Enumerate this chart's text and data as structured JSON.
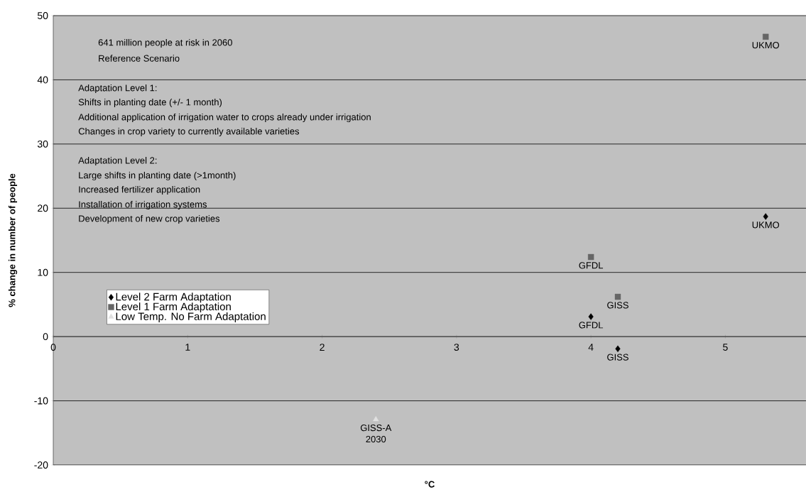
{
  "chart_data": {
    "type": "scatter",
    "xlabel": "°C",
    "ylabel": "% change in number of people",
    "xlim": [
      0,
      5.6
    ],
    "ylim": [
      -20,
      50
    ],
    "xticks": [
      0,
      1,
      2,
      3,
      4,
      5
    ],
    "yticks": [
      -20,
      -10,
      0,
      10,
      20,
      30,
      40,
      50
    ],
    "grid": "y",
    "legend": "left",
    "series": [
      {
        "name": "Level 2 Farm Adaptation",
        "color": "#000000",
        "marker": "diamond",
        "x": [
          4.0,
          4.2,
          5.3
        ],
        "values": [
          3.1,
          -1.9,
          18.7
        ],
        "value_labels": [
          "GFDL",
          "GISS",
          "UKMO"
        ]
      },
      {
        "name": "Level 1 Farm Adaptation",
        "color": "#666666",
        "marker": "square",
        "x": [
          4.0,
          4.2,
          5.3
        ],
        "values": [
          12.4,
          6.2,
          46.7
        ],
        "value_labels": [
          "GFDL",
          "GISS",
          "UKMO"
        ]
      },
      {
        "name": "Low Temp. No Farm Adaptation",
        "color": "#e0e0e0",
        "marker": "triangle",
        "x": [
          2.4
        ],
        "values": [
          -12.9
        ],
        "value_labels": [
          "GISS-A 2030"
        ]
      }
    ],
    "annotations": [
      "641 million people at risk in 2060",
      "Reference Scenario",
      "Adaptation Level 1:",
      "Shifts in planting date (+/- 1 month)",
      "Additional application of irrigation water to crops already under irrigation",
      "Changes in crop variety to currently available varieties",
      "Adaptation Level 2:",
      "Large shifts in planting date (>1month)",
      "Increased fertilizer application",
      "Installation of irrigation systems",
      "Development of new crop varieties"
    ]
  }
}
